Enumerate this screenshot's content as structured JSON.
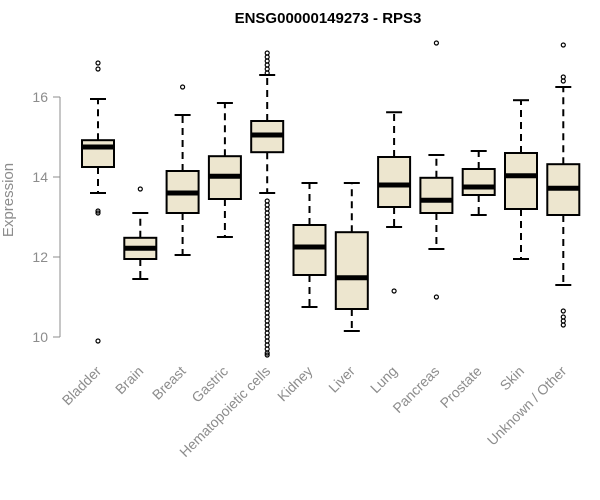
{
  "chart_data": {
    "type": "boxplot",
    "title": "ENSG00000149273 - RPS3",
    "xlabel": "",
    "ylabel": "Expression",
    "ylim": [
      9.5,
      17.3
    ],
    "yticks": [
      10,
      12,
      14,
      16
    ],
    "grid": false,
    "legend": "none",
    "box_color": "#ede6cf",
    "categories": [
      "Bladder",
      "Brain",
      "Breast",
      "Gastric",
      "Hematopoietic cells",
      "Kidney",
      "Liver",
      "Lung",
      "Pancreas",
      "Prostate",
      "Skin",
      "Unknown / Other"
    ],
    "boxes": [
      {
        "whisker_low": 13.6,
        "q1": 14.25,
        "median": 14.75,
        "q3": 14.92,
        "whisker_high": 15.95,
        "outliers": [
          16.85,
          16.7,
          13.15,
          13.1,
          9.9
        ]
      },
      {
        "whisker_low": 11.45,
        "q1": 11.95,
        "median": 12.22,
        "q3": 12.48,
        "whisker_high": 13.1,
        "outliers": [
          13.7
        ]
      },
      {
        "whisker_low": 12.05,
        "q1": 13.1,
        "median": 13.6,
        "q3": 14.15,
        "whisker_high": 15.55,
        "outliers": [
          16.25
        ]
      },
      {
        "whisker_low": 12.5,
        "q1": 13.45,
        "median": 14.02,
        "q3": 14.52,
        "whisker_high": 15.85,
        "outliers": []
      },
      {
        "whisker_low": 13.6,
        "q1": 14.62,
        "median": 15.05,
        "q3": 15.4,
        "whisker_high": 16.55,
        "outliers": [
          17.1,
          17.0,
          16.9,
          16.8,
          16.7,
          16.6,
          13.4,
          13.3,
          13.2,
          13.1,
          13.0,
          12.9,
          12.8,
          12.7,
          12.6,
          12.5,
          12.4,
          12.3,
          12.2,
          12.1,
          12.0,
          11.9,
          11.8,
          11.7,
          11.6,
          11.5,
          11.4,
          11.3,
          11.2,
          11.1,
          11.0,
          10.9,
          10.8,
          10.7,
          10.6,
          10.5,
          10.4,
          10.3,
          10.2,
          10.1,
          10.0,
          9.9,
          9.8,
          9.7,
          9.6,
          9.55
        ]
      },
      {
        "whisker_low": 10.75,
        "q1": 11.55,
        "median": 12.25,
        "q3": 12.8,
        "whisker_high": 13.85,
        "outliers": []
      },
      {
        "whisker_low": 10.15,
        "q1": 10.7,
        "median": 11.48,
        "q3": 12.62,
        "whisker_high": 13.85,
        "outliers": []
      },
      {
        "whisker_low": 12.75,
        "q1": 13.25,
        "median": 13.8,
        "q3": 14.5,
        "whisker_high": 15.62,
        "outliers": [
          11.15
        ]
      },
      {
        "whisker_low": 12.2,
        "q1": 13.1,
        "median": 13.42,
        "q3": 13.98,
        "whisker_high": 14.55,
        "outliers": [
          17.35,
          11.0
        ]
      },
      {
        "whisker_low": 13.05,
        "q1": 13.55,
        "median": 13.75,
        "q3": 14.2,
        "whisker_high": 14.65,
        "outliers": []
      },
      {
        "whisker_low": 11.95,
        "q1": 13.2,
        "median": 14.03,
        "q3": 14.6,
        "whisker_high": 15.92,
        "outliers": []
      },
      {
        "whisker_low": 11.3,
        "q1": 13.05,
        "median": 13.72,
        "q3": 14.32,
        "whisker_high": 16.25,
        "outliers": [
          17.3,
          16.5,
          16.4,
          10.65,
          10.5,
          10.4,
          10.3
        ]
      }
    ]
  }
}
